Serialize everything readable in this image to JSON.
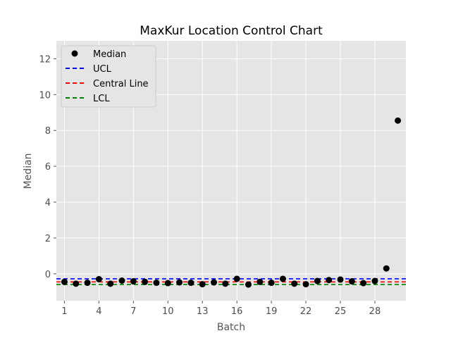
{
  "chart_data": {
    "type": "scatter",
    "title": "MaxKur Location Control Chart",
    "xlabel": "Batch",
    "ylabel": "Median",
    "x": [
      1,
      2,
      3,
      4,
      5,
      6,
      7,
      8,
      9,
      10,
      11,
      12,
      13,
      14,
      15,
      16,
      17,
      18,
      19,
      20,
      21,
      22,
      23,
      24,
      25,
      26,
      27,
      28,
      29,
      30
    ],
    "x_tick_labels": [
      "1",
      "4",
      "7",
      "10",
      "13",
      "16",
      "19",
      "22",
      "25",
      "28"
    ],
    "xlim": [
      0.3,
      30.7
    ],
    "y_ticks": [
      0,
      2,
      4,
      6,
      8,
      10,
      12
    ],
    "ylim": [
      -1.5,
      13.0
    ],
    "grid": true,
    "legend_position": "top-left",
    "series": [
      {
        "name": "Median",
        "kind": "points",
        "color": "#000000",
        "values": [
          -0.45,
          -0.55,
          -0.5,
          -0.3,
          -0.55,
          -0.38,
          -0.42,
          -0.45,
          -0.5,
          -0.52,
          -0.48,
          -0.5,
          -0.58,
          -0.48,
          -0.55,
          -0.28,
          -0.6,
          -0.45,
          -0.5,
          -0.28,
          -0.55,
          -0.58,
          -0.4,
          -0.35,
          -0.32,
          -0.42,
          -0.52,
          -0.4,
          0.3,
          8.55
        ]
      },
      {
        "name": "UCL",
        "kind": "hline",
        "value": -0.28,
        "color": "#0000ff"
      },
      {
        "name": "Central Line",
        "kind": "hline",
        "value": -0.45,
        "color": "#ff0000"
      },
      {
        "name": "LCL",
        "kind": "hline",
        "value": -0.6,
        "color": "#008000"
      }
    ],
    "colors": {
      "plot_bg": "#e5e5e5",
      "grid": "#ffffff"
    }
  }
}
